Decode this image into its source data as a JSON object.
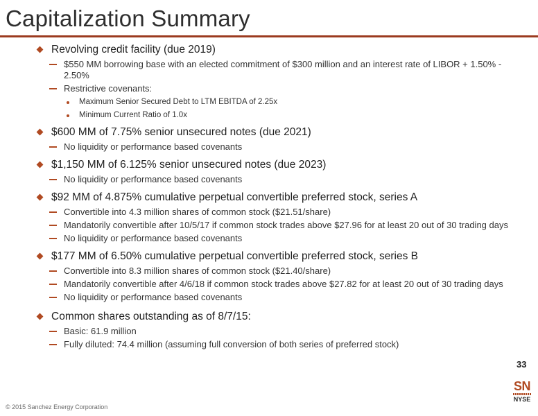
{
  "title": "Capitalization Summary",
  "accent_color": "#b04a22",
  "rule_color": "#9b3a1f",
  "sections": [
    {
      "heading": "Revolving credit facility (due 2019)",
      "items": [
        {
          "text": "$550 MM borrowing base with an elected commitment of $300 million and an interest rate of LIBOR + 1.50% - 2.50%"
        },
        {
          "text": "Restrictive covenants:",
          "subitems": [
            "Maximum Senior Secured Debt to LTM EBITDA of 2.25x",
            "Minimum Current Ratio of 1.0x"
          ]
        }
      ]
    },
    {
      "heading": "$600 MM of 7.75% senior unsecured notes (due 2021)",
      "items": [
        {
          "text": "No liquidity or performance based covenants"
        }
      ]
    },
    {
      "heading": "$1,150 MM of 6.125% senior unsecured notes (due 2023)",
      "items": [
        {
          "text": "No liquidity or performance based covenants"
        }
      ]
    },
    {
      "heading": "$92 MM of 4.875% cumulative perpetual convertible preferred stock, series A",
      "items": [
        {
          "text": "Convertible into 4.3 million shares of common stock ($21.51/share)"
        },
        {
          "text": "Mandatorily convertible after 10/5/17 if common stock trades above $27.96 for at least 20 out of 30 trading days"
        },
        {
          "text": "No liquidity or performance based covenants"
        }
      ]
    },
    {
      "heading": "$177 MM of 6.50% cumulative perpetual convertible preferred stock, series B",
      "items": [
        {
          "text": "Convertible into 8.3 million shares of common stock ($21.40/share)"
        },
        {
          "text": "Mandatorily convertible after 4/6/18 if common stock trades above $27.82 for at least 20 out of 30 trading days"
        },
        {
          "text": "No liquidity or performance based covenants"
        }
      ]
    },
    {
      "heading": "Common shares outstanding as of 8/7/15:",
      "items": [
        {
          "text": "Basic: 61.9 million"
        },
        {
          "text": "Fully diluted: 74.4 million (assuming full conversion of both series of preferred stock)"
        }
      ]
    }
  ],
  "page_number": "33",
  "copyright": "© 2015 Sanchez Energy Corporation",
  "logo": {
    "top": "SN",
    "bottom": "NYSE"
  }
}
